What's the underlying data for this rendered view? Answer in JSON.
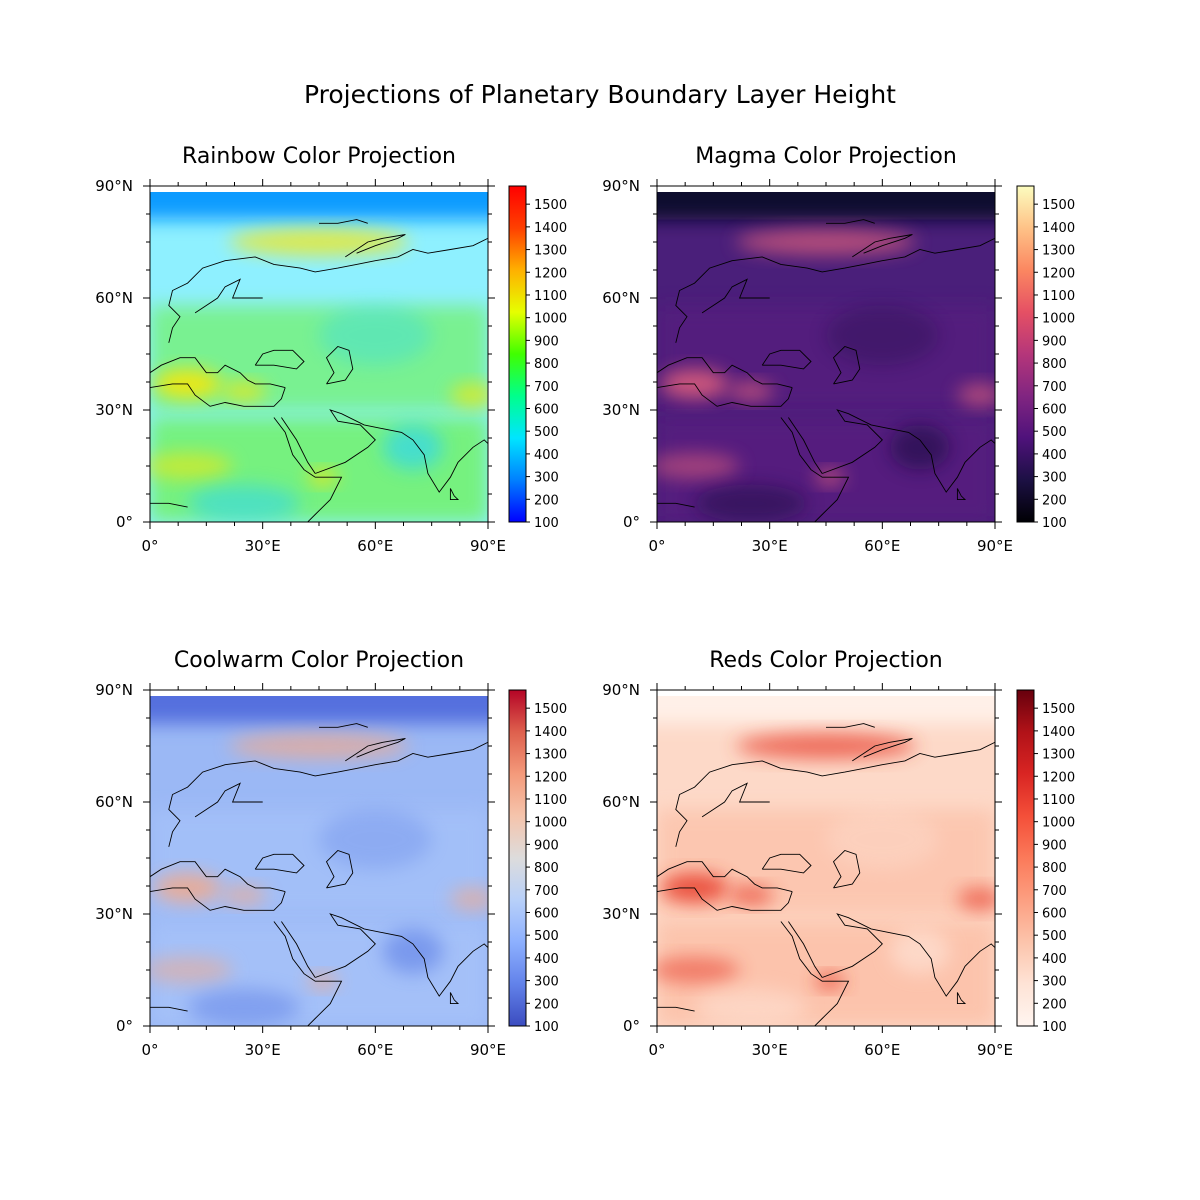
{
  "figure": {
    "title": "Projections of Planetary Boundary Layer Height"
  },
  "axes": {
    "x_ticks": [
      "0°",
      "30°E",
      "60°E",
      "90°E"
    ],
    "y_ticks": [
      "0°",
      "30°N",
      "60°N",
      "90°N"
    ],
    "lon_range": [
      0,
      90
    ],
    "lat_range": [
      0,
      90
    ]
  },
  "colorbar": {
    "ticks": [
      "100",
      "200",
      "300",
      "400",
      "500",
      "600",
      "700",
      "800",
      "900",
      "1000",
      "1100",
      "1200",
      "1300",
      "1400",
      "1500"
    ],
    "range": [
      100,
      1580
    ]
  },
  "panels": [
    {
      "title": "Rainbow Color Projection",
      "colormap": "rainbow",
      "colorbar_colors": [
        "#0000ff",
        "#0080ff",
        "#00e5ff",
        "#00ff8c",
        "#40ff00",
        "#e6ff00",
        "#ffb000",
        "#ff4000",
        "#ff0000"
      ],
      "ocean_color": "#8ef0ff",
      "land_color": "#6cf24a",
      "polar_color": "#0a9bff",
      "high_color": "#ffe600",
      "low_color": "#28d2ff"
    },
    {
      "title": "Magma Color Projection",
      "colormap": "magma",
      "colorbar_colors": [
        "#000004",
        "#1c1044",
        "#4f127b",
        "#812581",
        "#b5367a",
        "#e55064",
        "#fb8761",
        "#fec287",
        "#fcfdbf"
      ],
      "ocean_color": "#4a1f7a",
      "land_color": "#5a1e80",
      "polar_color": "#100b2d",
      "high_color": "#e0607c",
      "low_color": "#1c1044"
    },
    {
      "title": "Coolwarm Color Projection",
      "colormap": "coolwarm",
      "colorbar_colors": [
        "#3b4cc0",
        "#6282ea",
        "#8db0fe",
        "#b8d0f9",
        "#dddcdc",
        "#f5c4ac",
        "#f49a7b",
        "#de604d",
        "#b40426"
      ],
      "ocean_color": "#9bb8f5",
      "land_color": "#a8c4fa",
      "polar_color": "#5470de",
      "high_color": "#f2a98a",
      "low_color": "#5f80e6"
    },
    {
      "title": "Reds Color Projection",
      "colormap": "reds",
      "colorbar_colors": [
        "#fff5f0",
        "#fee3d6",
        "#fcc4ab",
        "#fc9f81",
        "#fb7a5a",
        "#f44f39",
        "#d92523",
        "#b11218",
        "#67000d"
      ],
      "ocean_color": "#fdd9c8",
      "land_color": "#fcbba1",
      "polar_color": "#fff0e8",
      "high_color": "#e8402f",
      "low_color": "#fee6da"
    }
  ]
}
